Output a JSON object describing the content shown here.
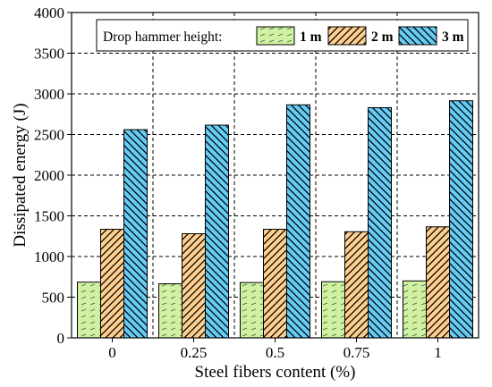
{
  "chart_data": {
    "type": "bar",
    "title": "",
    "xlabel": "Steel fibers content (%)",
    "ylabel": "Dissipated energy (J)",
    "categories": [
      "0",
      "0.25",
      "0.5",
      "0.75",
      "1"
    ],
    "ylim": [
      0,
      4000
    ],
    "yticks": [
      0,
      500,
      1000,
      1500,
      2000,
      2500,
      3000,
      3500,
      4000
    ],
    "grid": true,
    "legend": {
      "title": "Drop hammer height:",
      "placement": "top-center"
    },
    "series": [
      {
        "name": "1 m",
        "values": [
          685,
          665,
          680,
          690,
          700
        ],
        "color": "#d2f0a4",
        "pattern": "light-dashes"
      },
      {
        "name": "2 m",
        "values": [
          1335,
          1280,
          1335,
          1305,
          1365
        ],
        "color": "#ffcf8f",
        "pattern": "diagonal-up"
      },
      {
        "name": "3 m",
        "values": [
          2560,
          2615,
          2865,
          2830,
          2915
        ],
        "color": "#66ccf5",
        "pattern": "diagonal-down"
      }
    ]
  }
}
